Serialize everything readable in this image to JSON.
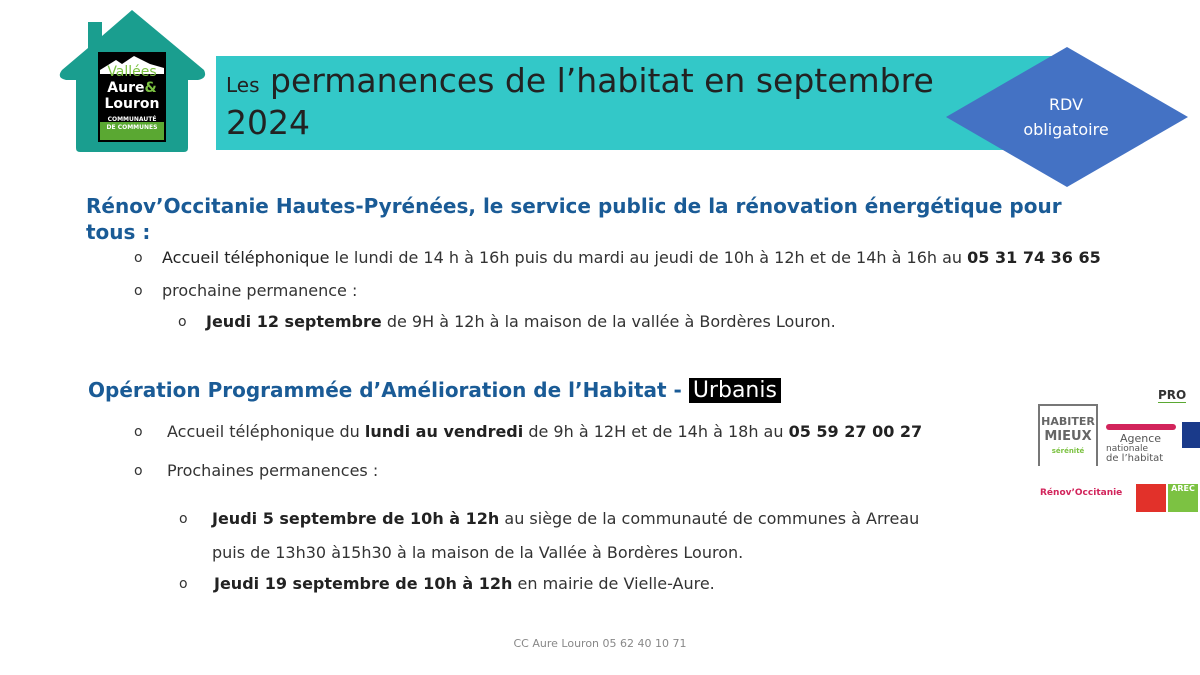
{
  "logo": {
    "line1": "Vallées",
    "line2": "Aure",
    "amp": "&",
    "line3": "Louron",
    "line4": "COMMUNAUTÉ",
    "line5": "DE COMMUNES"
  },
  "header": {
    "title_prefix": "Les",
    "title_main": "permanences de l’habitat en septembre 2024",
    "badge_line1": "RDV",
    "badge_line2": "obligatoire"
  },
  "colors": {
    "banner": "#33c8c8",
    "house": "#1a9e8f",
    "badge": "#4472c4",
    "heading": "#1a5b96"
  },
  "section1": {
    "heading": "Rénov’Occitanie Hautes-Pyrénées, le service public de la rénovation énergétique pour tous :",
    "items": [
      {
        "bullet": "o",
        "bold": "Accueil téléphonique",
        "text": " le lundi de  14 h à 16h puis du mardi au jeudi de 10h à 12h et de 14h à 16h au ",
        "phone": "05 31 74 36 65"
      },
      {
        "bullet": "o",
        "text": "prochaine permanence :"
      }
    ],
    "sub": {
      "bullet": "o",
      "bold": "Jeudi  12 septembre",
      "text": "  de 9H à 12h à la maison de la vallée à Bordères Louron."
    }
  },
  "section2": {
    "heading": "Opération Programmée d’Amélioration de l’Habitat -  ",
    "badge": "Urbanis",
    "items": [
      {
        "bullet": "o",
        "text1": "Accueil téléphonique du ",
        "bold": "lundi au vendredi",
        "text2": " de 9h à 12H  et de 14h à 18h  au ",
        "phone": "05 59 27 00 27"
      },
      {
        "bullet": "o",
        "text1": "Prochaines permanences :"
      }
    ],
    "subs": [
      {
        "bullet": "o",
        "bold": "Jeudi 5 septembre de 10h à 12h",
        "text": " au siège de la communauté de communes à Arreau",
        "line2": "puis de 13h30 à15h30 à la maison de la Vallée à Bordères Louron."
      },
      {
        "bullet": "o",
        "bold": "Jeudi 19 septembre de 10h à 12h",
        "text": " en mairie de Vielle-Aure."
      }
    ]
  },
  "partner_logos": {
    "habiter1": "HABITER",
    "habiter2": "MIEUX",
    "serenite": "sérénité",
    "anah1": "Agence",
    "anah2": "nationale",
    "anah3": "de l’habitat",
    "renov": "Rénov’Occitanie",
    "arec": "AREC",
    "pro": "PRO"
  },
  "footer": "CC Aure Louron 05 62 40 10 71"
}
